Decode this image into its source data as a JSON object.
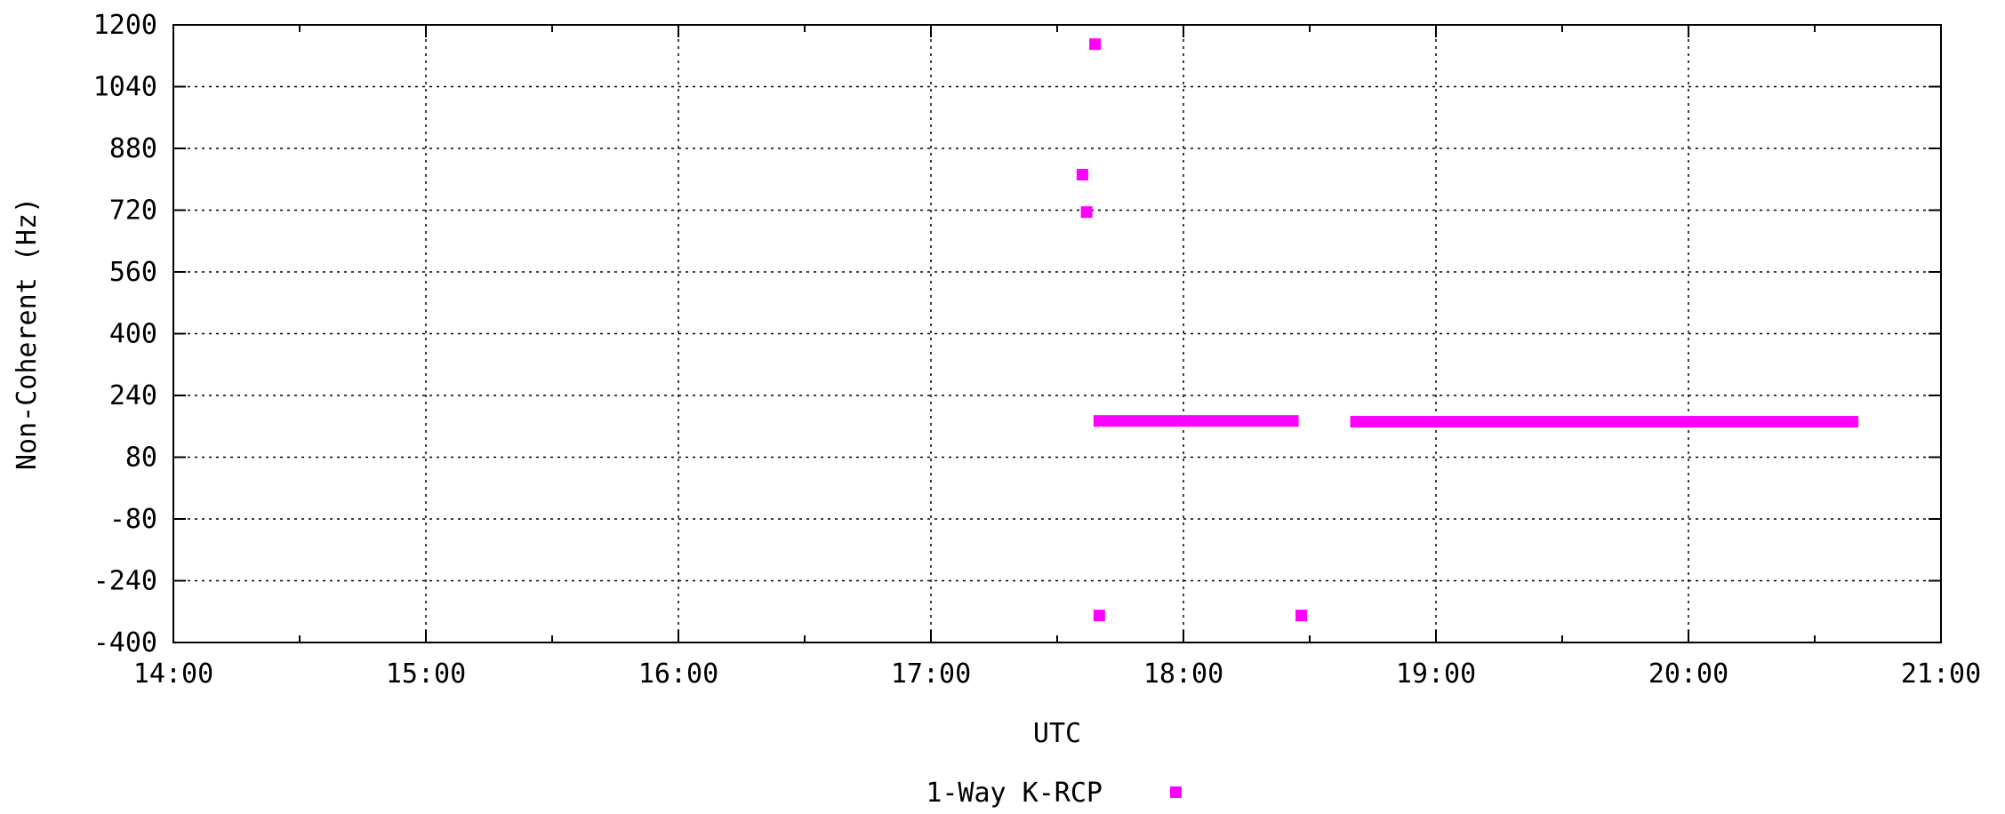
{
  "chart_data": {
    "type": "scatter",
    "title": "",
    "xlabel": "UTC",
    "ylabel": "Non-Coherent (Hz)",
    "xlim": [
      "14:00",
      "21:00"
    ],
    "ylim": [
      -400,
      1200
    ],
    "x_ticks": [
      "14:00",
      "15:00",
      "16:00",
      "17:00",
      "18:00",
      "19:00",
      "20:00",
      "21:00"
    ],
    "y_ticks": [
      "1200",
      "1040",
      "880",
      "720",
      "560",
      "400",
      "240",
      "80",
      "-80",
      "-240",
      "-400"
    ],
    "grid": true,
    "legend_position": "bottom-center",
    "series": [
      {
        "name": "1-Way K-RCP",
        "color": "#ff00ff",
        "marker": "square",
        "points": [
          {
            "x": "17:39",
            "y": 1150
          },
          {
            "x": "17:36",
            "y": 812
          },
          {
            "x": "17:37",
            "y": 715
          },
          {
            "x": "17:40",
            "y": -330
          },
          {
            "x": "18:28",
            "y": -330
          }
        ],
        "segments": [
          {
            "x_start": "17:40",
            "x_end": "18:26",
            "y": 174
          },
          {
            "x_start": "18:41",
            "x_end": "20:39",
            "y": 172
          }
        ]
      }
    ]
  }
}
